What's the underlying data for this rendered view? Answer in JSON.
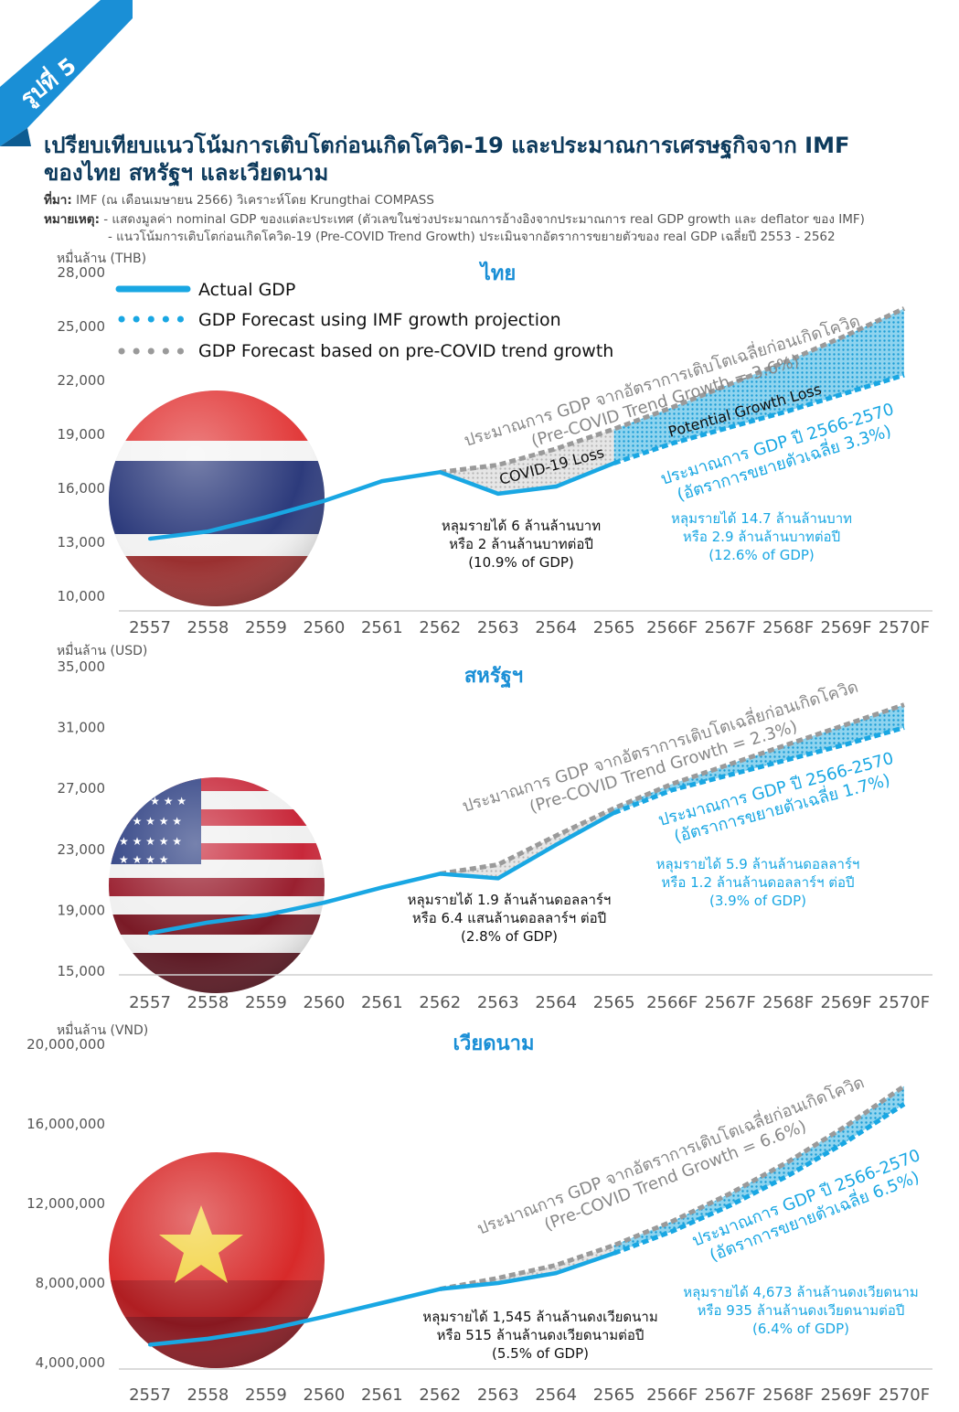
{
  "figure": {
    "badge": "รูปที่ 5",
    "title_line1": "เปรียบเทียบแนวโน้มการเติบโตก่อนเกิดโควิด-19 และประมาณการเศรษฐกิจจาก IMF",
    "title_line2": "ของไทย สหรัฐฯ และเวียดนาม",
    "source_label": "ที่มา:",
    "source_text": " IMF (ณ เดือนเมษายน 2566) วิเคราะห์โดย Krungthai COMPASS",
    "note_label": "หมายเหตุ:",
    "note_line1": " - แสดงมูลค่า nominal GDP ของแต่ละประเทศ (ตัวเลขในช่วงประมาณการอ้างอิงจากประมาณการ real GDP growth และ deflator ของ IMF)",
    "note_line2": "- แนวโน้มการเติบโตก่อนเกิดโควิด-19 (Pre-COVID Trend Growth) ประเมินจากอัตราการขยายตัวของ real GDP เฉลี่ยปี 2553 - 2562"
  },
  "colors": {
    "actual": "#19a7e3",
    "forecast": "#19a7e3",
    "trend": "#9a9a9a",
    "badge": "#1a8fd6",
    "title": "#0d3a5c",
    "country_title": "#1a8fd6"
  },
  "legend": {
    "actual": "Actual GDP",
    "imf": "GDP Forecast using IMF growth projection",
    "trend": "GDP Forecast based on pre-COVID trend growth"
  },
  "chart_data": [
    {
      "type": "line",
      "title": "ไทย",
      "ylabel": "หมื่นล้าน (THB)",
      "ylim": [
        10000,
        28000
      ],
      "yticks": [
        "10,000",
        "13,000",
        "16,000",
        "19,000",
        "22,000",
        "25,000",
        "28,000"
      ],
      "categories": [
        "2557",
        "2558",
        "2559",
        "2560",
        "2561",
        "2562",
        "2563",
        "2564",
        "2565",
        "2566F",
        "2567F",
        "2568F",
        "2569F",
        "2570F"
      ],
      "series": [
        {
          "name": "Actual GDP",
          "values": [
            13200,
            13600,
            14400,
            15300,
            16400,
            16900,
            15700,
            16100,
            17400,
            null,
            null,
            null,
            null,
            null
          ]
        },
        {
          "name": "GDP Forecast using IMF growth projection",
          "values": [
            null,
            null,
            null,
            null,
            null,
            null,
            null,
            null,
            17400,
            18500,
            19400,
            20300,
            21300,
            22300
          ]
        },
        {
          "name": "GDP Forecast based on pre-COVID trend growth",
          "values": [
            null,
            null,
            null,
            null,
            null,
            16900,
            17300,
            18200,
            19300,
            20500,
            21800,
            23100,
            24500,
            26000
          ]
        }
      ],
      "annotations": {
        "trend_line1": "ประมาณการ GDP จากอัตราการเติบโตเฉลี่ยก่อนเกิดโควิด",
        "trend_line2": "(Pre-COVID Trend Growth = 3.6%)",
        "imf_line1": "ประมาณการ GDP ปี 2566-2570",
        "imf_line2": "(อัตราการขยายตัวเฉลี่ย 3.3%)",
        "covid_loss": "COVID-19 Loss",
        "potential_loss": "Potential Growth Loss",
        "loss_covid": [
          "หลุมรายได้ 6 ล้านล้านบาท",
          "หรือ 2 ล้านล้านบาทต่อปี",
          "(10.9% of GDP)"
        ],
        "loss_forecast": [
          "หลุมรายได้ 14.7 ล้านล้านบาท",
          "หรือ 2.9 ล้านล้านบาทต่อปี",
          "(12.6% of GDP)"
        ]
      }
    },
    {
      "type": "line",
      "title": "สหรัฐฯ",
      "ylabel": "หมื่นล้าน (USD)",
      "ylim": [
        15000,
        35000
      ],
      "yticks": [
        "15,000",
        "19,000",
        "23,000",
        "27,000",
        "31,000",
        "35,000"
      ],
      "categories": [
        "2557",
        "2558",
        "2559",
        "2560",
        "2561",
        "2562",
        "2563",
        "2564",
        "2565",
        "2566F",
        "2567F",
        "2568F",
        "2569F",
        "2570F"
      ],
      "series": [
        {
          "name": "Actual GDP",
          "values": [
            17500,
            18200,
            18700,
            19500,
            20500,
            21400,
            21100,
            23300,
            25400,
            null,
            null,
            null,
            null,
            null
          ]
        },
        {
          "name": "GDP Forecast using IMF growth projection",
          "values": [
            null,
            null,
            null,
            null,
            null,
            null,
            null,
            null,
            25400,
            26900,
            27900,
            28900,
            29900,
            31000
          ]
        },
        {
          "name": "GDP Forecast based on pre-COVID trend growth",
          "values": [
            null,
            null,
            null,
            null,
            null,
            21400,
            22000,
            23900,
            25700,
            27300,
            28600,
            29900,
            31200,
            32500
          ]
        }
      ],
      "annotations": {
        "trend_line1": "ประมาณการ GDP จากอัตราการเติบโตเฉลี่ยก่อนเกิดโควิด",
        "trend_line2": "(Pre-COVID Trend Growth = 2.3%)",
        "imf_line1": "ประมาณการ GDP ปี 2566-2570",
        "imf_line2": "(อัตราการขยายตัวเฉลี่ย 1.7%)",
        "loss_covid": [
          "หลุมรายได้ 1.9 ล้านล้านดอลลาร์ฯ",
          "หรือ 6.4 แสนล้านดอลลาร์ฯ ต่อปี",
          "(2.8% of GDP)"
        ],
        "loss_forecast": [
          "หลุมรายได้ 5.9 ล้านล้านดอลลาร์ฯ",
          "หรือ 1.2 ล้านล้านดอลลาร์ฯ ต่อปี",
          "(3.9% of GDP)"
        ]
      }
    },
    {
      "type": "line",
      "title": "เวียดนาม",
      "ylabel": "หมื่นล้าน (VND)",
      "ylim": [
        4000000,
        20000000
      ],
      "yticks": [
        "4,000,000",
        "8,000,000",
        "12,000,000",
        "16,000,000",
        "20,000,000"
      ],
      "categories": [
        "2557",
        "2558",
        "2559",
        "2560",
        "2561",
        "2562",
        "2563",
        "2564",
        "2565",
        "2566F",
        "2567F",
        "2568F",
        "2569F",
        "2570F"
      ],
      "series": [
        {
          "name": "Actual GDP",
          "values": [
            4900000,
            5200000,
            5650000,
            6300000,
            7000000,
            7700000,
            8000000,
            8500000,
            9500000,
            null,
            null,
            null,
            null,
            null
          ]
        },
        {
          "name": "GDP Forecast using IMF growth projection",
          "values": [
            null,
            null,
            null,
            null,
            null,
            null,
            null,
            null,
            9500000,
            10600000,
            11900000,
            13400000,
            15100000,
            17000000
          ]
        },
        {
          "name": "GDP Forecast based on pre-COVID trend growth",
          "values": [
            null,
            null,
            null,
            null,
            null,
            7700000,
            8250000,
            8900000,
            9900000,
            11100000,
            12500000,
            14100000,
            15900000,
            17900000
          ]
        }
      ],
      "annotations": {
        "trend_line1": "ประมาณการ GDP จากอัตราการเติบโตเฉลี่ยก่อนเกิดโควิด",
        "trend_line2": "(Pre-COVID Trend Growth = 6.6%)",
        "imf_line1": "ประมาณการ GDP ปี 2566-2570",
        "imf_line2": "(อัตราการขยายตัวเฉลี่ย 6.5%)",
        "loss_covid": [
          "หลุมรายได้ 1,545 ล้านล้านดงเวียดนาม",
          "หรือ 515 ล้านล้านดงเวียดนามต่อปี",
          "(5.5% of GDP)"
        ],
        "loss_forecast": [
          "หลุมรายได้ 4,673 ล้านล้านดงเวียดนาม",
          "หรือ 935 ล้านล้านดงเวียดนามต่อปี",
          "(6.4% of GDP)"
        ]
      }
    }
  ]
}
